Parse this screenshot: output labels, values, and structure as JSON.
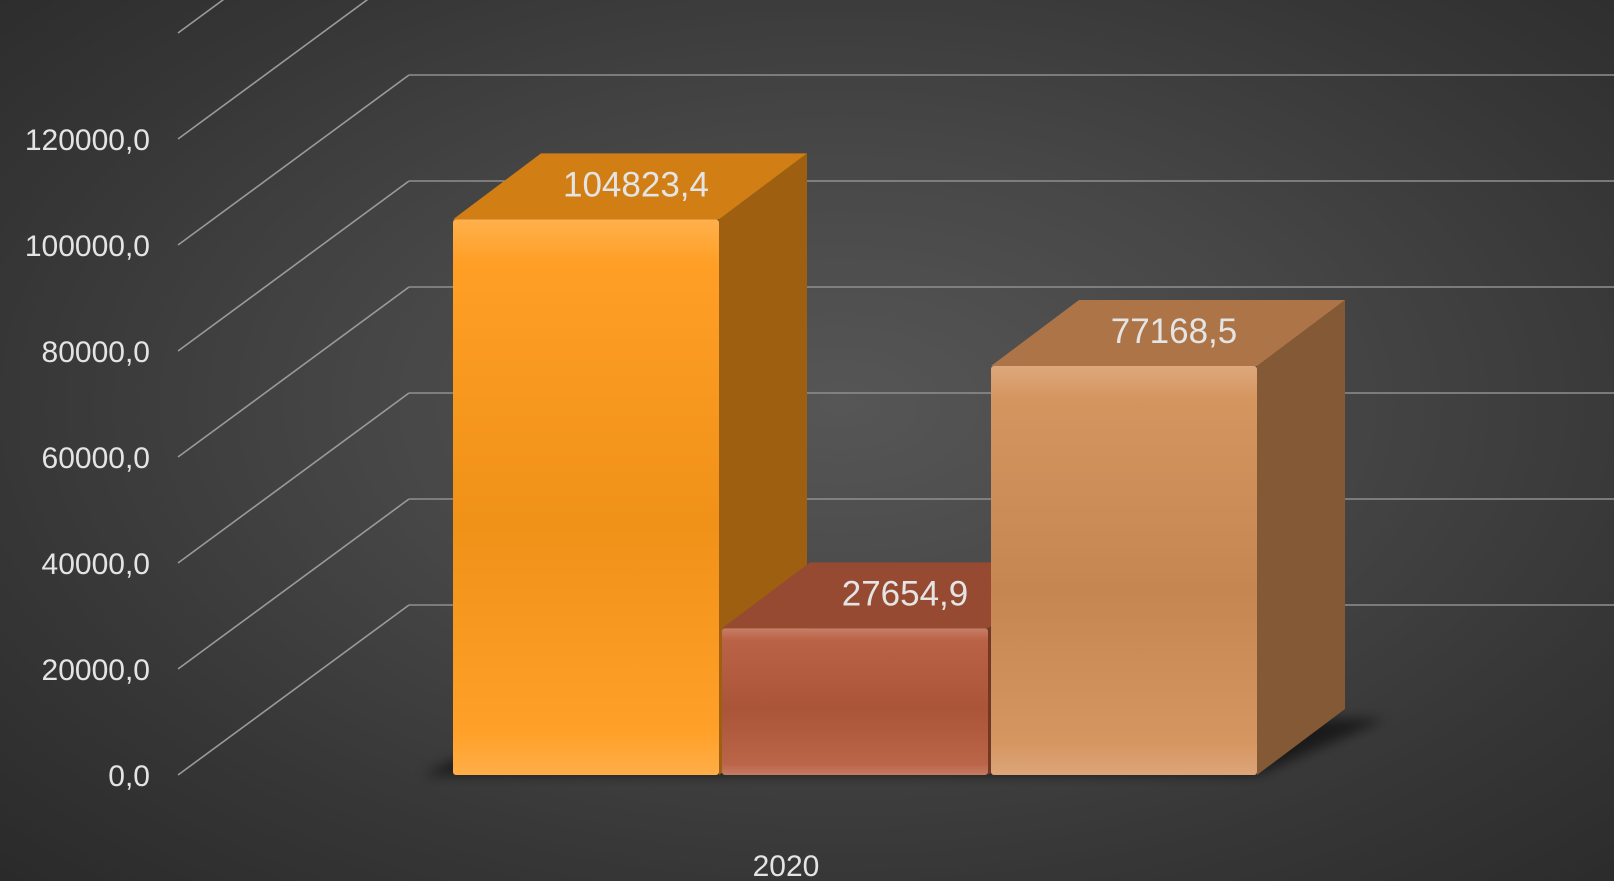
{
  "chart_data": {
    "type": "bar",
    "style": "3d-column",
    "title": "",
    "xlabel": "",
    "ylabel": "",
    "categories": [
      "2020"
    ],
    "series": [
      {
        "values": [
          104823.4
        ],
        "label": "104823,4",
        "color": "#ff9a1a"
      },
      {
        "values": [
          27654.9
        ],
        "label": "27654,9",
        "color": "#b65a3c"
      },
      {
        "values": [
          77168.5
        ],
        "label": "77168,5",
        "color": "#d38f57"
      }
    ],
    "ylim": [
      0,
      140000
    ],
    "yticks": [
      0,
      20000,
      40000,
      60000,
      80000,
      100000,
      120000
    ],
    "ytick_labels": [
      "0,0",
      "20000,0",
      "40000,0",
      "60000,0",
      "80000,0",
      "100000,0",
      "120000,0"
    ],
    "grid": true,
    "legend": "none",
    "background": "#3b3b3b"
  }
}
